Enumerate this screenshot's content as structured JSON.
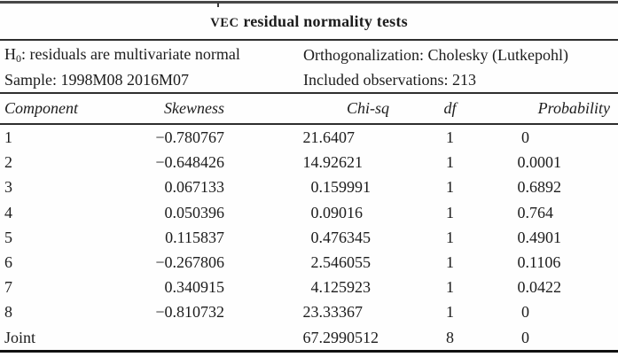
{
  "title": {
    "acronym": "VEC",
    "rest": " residual normality tests"
  },
  "info": {
    "h0_prefix": "H",
    "h0_subscript": "0",
    "h0_text": ": residuals are multivariate normal",
    "orthogonalization": "Orthogonalization: Cholesky (Lutkepohl)",
    "sample": "Sample: 1998M08 2016M07",
    "observations": "Included observations: 213"
  },
  "table": {
    "columns": [
      "Component",
      "Skewness",
      "Chi-sq",
      "df",
      "Probability"
    ],
    "rows": [
      {
        "component": "1",
        "skewness": "−0.780767",
        "chi_sq": "21.6407",
        "df": "1",
        "probability": "0"
      },
      {
        "component": "2",
        "skewness": "−0.648426",
        "chi_sq": "14.92621",
        "df": "1",
        "probability": "0.0001"
      },
      {
        "component": "3",
        "skewness": "0.067133",
        "chi_sq": "0.159991",
        "df": "1",
        "probability": "0.6892"
      },
      {
        "component": "4",
        "skewness": "0.050396",
        "chi_sq": "0.09016",
        "df": "1",
        "probability": "0.764"
      },
      {
        "component": "5",
        "skewness": "0.115837",
        "chi_sq": "0.476345",
        "df": "1",
        "probability": "0.4901"
      },
      {
        "component": "6",
        "skewness": "−0.267806",
        "chi_sq": "2.546055",
        "df": "1",
        "probability": "0.1106"
      },
      {
        "component": "7",
        "skewness": "0.340915",
        "chi_sq": "4.125923",
        "df": "1",
        "probability": "0.0422"
      },
      {
        "component": "8",
        "skewness": "−0.810732",
        "chi_sq": "23.33367",
        "df": "1",
        "probability": "0"
      },
      {
        "component": "Joint",
        "skewness": "",
        "chi_sq": "67.2990512",
        "df": "8",
        "probability": "0"
      }
    ]
  }
}
